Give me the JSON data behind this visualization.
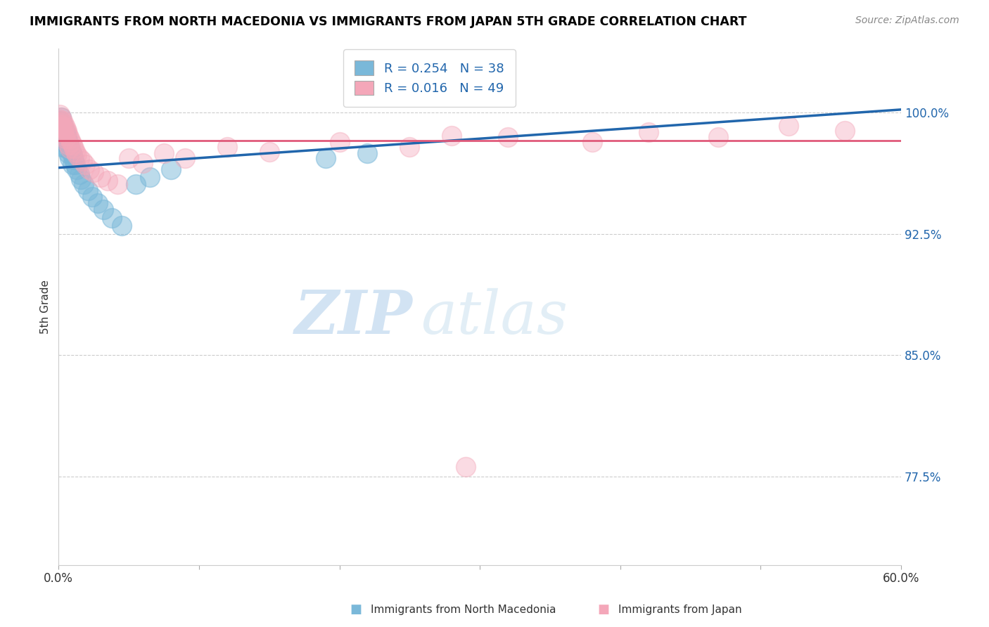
{
  "title": "IMMIGRANTS FROM NORTH MACEDONIA VS IMMIGRANTS FROM JAPAN 5TH GRADE CORRELATION CHART",
  "source": "Source: ZipAtlas.com",
  "ylabel": "5th Grade",
  "yaxis_labels": [
    "77.5%",
    "85.0%",
    "92.5%",
    "100.0%"
  ],
  "yaxis_values": [
    0.775,
    0.85,
    0.925,
    1.0
  ],
  "legend_blue_r": "R = 0.254",
  "legend_blue_n": "N = 38",
  "legend_pink_r": "R = 0.016",
  "legend_pink_n": "N = 49",
  "blue_color": "#7ab8d9",
  "pink_color": "#f4a7b9",
  "blue_line_color": "#2166ac",
  "pink_line_color": "#e05a7a",
  "watermark_zip": "ZIP",
  "watermark_atlas": "atlas",
  "xlim": [
    0.0,
    0.6
  ],
  "ylim": [
    0.72,
    1.04
  ],
  "blue_scatter_x": [
    0.001,
    0.001,
    0.002,
    0.002,
    0.002,
    0.003,
    0.003,
    0.003,
    0.004,
    0.004,
    0.005,
    0.005,
    0.006,
    0.006,
    0.007,
    0.007,
    0.008,
    0.008,
    0.009,
    0.01,
    0.01,
    0.011,
    0.012,
    0.013,
    0.015,
    0.016,
    0.018,
    0.021,
    0.024,
    0.028,
    0.032,
    0.038,
    0.045,
    0.055,
    0.065,
    0.08,
    0.19,
    0.22
  ],
  "blue_scatter_y": [
    0.995,
    0.988,
    0.997,
    0.991,
    0.984,
    0.993,
    0.986,
    0.979,
    0.99,
    0.982,
    0.988,
    0.981,
    0.985,
    0.978,
    0.982,
    0.975,
    0.979,
    0.972,
    0.976,
    0.974,
    0.968,
    0.971,
    0.968,
    0.965,
    0.962,
    0.959,
    0.956,
    0.952,
    0.948,
    0.944,
    0.94,
    0.935,
    0.93,
    0.956,
    0.96,
    0.965,
    0.972,
    0.975
  ],
  "pink_scatter_x": [
    0.001,
    0.001,
    0.002,
    0.002,
    0.003,
    0.003,
    0.004,
    0.004,
    0.005,
    0.005,
    0.006,
    0.007,
    0.007,
    0.008,
    0.008,
    0.009,
    0.01,
    0.011,
    0.012,
    0.013,
    0.015,
    0.017,
    0.019,
    0.022,
    0.025,
    0.03,
    0.035,
    0.042,
    0.05,
    0.06,
    0.075,
    0.09,
    0.12,
    0.15,
    0.2,
    0.25,
    0.32,
    0.38,
    0.42,
    0.47,
    0.52,
    0.56,
    0.001,
    0.002,
    0.003,
    0.004,
    0.006,
    0.28,
    0.29
  ],
  "pink_scatter_y": [
    0.999,
    0.993,
    0.997,
    0.991,
    0.995,
    0.988,
    0.993,
    0.986,
    0.991,
    0.984,
    0.989,
    0.986,
    0.98,
    0.984,
    0.978,
    0.982,
    0.98,
    0.978,
    0.976,
    0.974,
    0.972,
    0.97,
    0.968,
    0.965,
    0.963,
    0.96,
    0.958,
    0.956,
    0.972,
    0.969,
    0.975,
    0.972,
    0.979,
    0.976,
    0.982,
    0.979,
    0.985,
    0.982,
    0.988,
    0.985,
    0.992,
    0.989,
    0.996,
    0.994,
    0.992,
    0.99,
    0.988,
    0.986,
    0.781
  ]
}
